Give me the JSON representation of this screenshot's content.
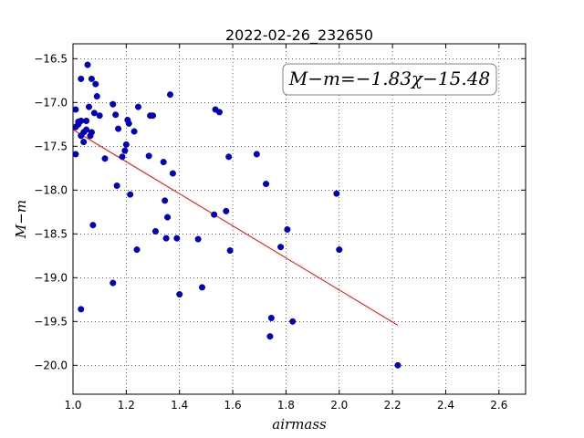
{
  "chart_data": {
    "type": "scatter",
    "title": "2022-02-26_232650",
    "xlabel": "airmass",
    "ylabel": "M−m",
    "xlim": [
      1.0,
      2.7
    ],
    "ylim": [
      -20.33,
      -16.33
    ],
    "y_inverted": true,
    "grid": true,
    "x_ticks": [
      "1.0",
      "1.2",
      "1.4",
      "1.6",
      "1.8",
      "2.0",
      "2.2",
      "2.4",
      "2.6"
    ],
    "y_ticks": [
      "−16.5",
      "−17.0",
      "−17.5",
      "−18.0",
      "−18.5",
      "−19.0",
      "−19.5",
      "−20.0"
    ],
    "annotation": "M−m=−1.83χ−15.48",
    "point_color": "#0000cc",
    "fit_color": "#ff0000",
    "fit": {
      "slope": -1.83,
      "intercept": -15.48,
      "x_range": [
        1.0,
        2.22
      ]
    },
    "points": [
      [
        1.01,
        -17.59
      ],
      [
        1.01,
        -17.28
      ],
      [
        1.01,
        -17.08
      ],
      [
        1.02,
        -17.25
      ],
      [
        1.02,
        -17.22
      ],
      [
        1.03,
        -17.38
      ],
      [
        1.03,
        -17.21
      ],
      [
        1.03,
        -16.73
      ],
      [
        1.04,
        -17.45
      ],
      [
        1.04,
        -17.34
      ],
      [
        1.05,
        -17.31
      ],
      [
        1.05,
        -17.21
      ],
      [
        1.055,
        -16.57
      ],
      [
        1.06,
        -17.05
      ],
      [
        1.065,
        -17.38
      ],
      [
        1.07,
        -17.34
      ],
      [
        1.07,
        -16.73
      ],
      [
        1.08,
        -17.12
      ],
      [
        1.085,
        -16.79
      ],
      [
        1.09,
        -16.93
      ],
      [
        1.1,
        -17.15
      ],
      [
        1.03,
        -19.36
      ],
      [
        1.075,
        -18.4
      ],
      [
        1.12,
        -17.64
      ],
      [
        1.15,
        -17.02
      ],
      [
        1.16,
        -17.14
      ],
      [
        1.17,
        -17.3
      ],
      [
        1.165,
        -17.95
      ],
      [
        1.185,
        -17.62
      ],
      [
        1.195,
        -17.55
      ],
      [
        1.2,
        -17.48
      ],
      [
        1.205,
        -17.2
      ],
      [
        1.21,
        -17.24
      ],
      [
        1.215,
        -18.05
      ],
      [
        1.23,
        -17.33
      ],
      [
        1.245,
        -17.05
      ],
      [
        1.24,
        -18.68
      ],
      [
        1.15,
        -19.06
      ],
      [
        1.285,
        -17.61
      ],
      [
        1.29,
        -17.15
      ],
      [
        1.3,
        -17.15
      ],
      [
        1.31,
        -18.47
      ],
      [
        1.34,
        -17.68
      ],
      [
        1.345,
        -18.12
      ],
      [
        1.35,
        -18.55
      ],
      [
        1.355,
        -18.31
      ],
      [
        1.365,
        -16.91
      ],
      [
        1.375,
        -17.81
      ],
      [
        1.39,
        -18.55
      ],
      [
        1.4,
        -19.19
      ],
      [
        1.47,
        -18.56
      ],
      [
        1.485,
        -19.11
      ],
      [
        1.53,
        -18.28
      ],
      [
        1.535,
        -17.08
      ],
      [
        1.55,
        -17.11
      ],
      [
        1.575,
        -18.24
      ],
      [
        1.585,
        -17.62
      ],
      [
        1.59,
        -18.69
      ],
      [
        1.69,
        -17.59
      ],
      [
        1.725,
        -17.93
      ],
      [
        1.74,
        -19.67
      ],
      [
        1.745,
        -19.46
      ],
      [
        1.78,
        -18.65
      ],
      [
        1.805,
        -18.45
      ],
      [
        1.825,
        -19.5
      ],
      [
        1.99,
        -18.04
      ],
      [
        2.0,
        -18.68
      ],
      [
        2.22,
        -20.0
      ]
    ]
  }
}
